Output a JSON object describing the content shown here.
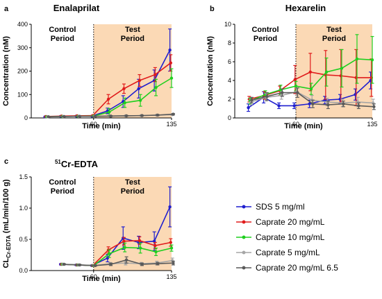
{
  "chart_data": [
    {
      "type": "line",
      "panel_letter": "a",
      "title": "Enalaprilat",
      "xlabel": "Time (min)",
      "ylabel": "Concentration (nM)",
      "xlim": [
        0,
        135
      ],
      "ylim": [
        0,
        400
      ],
      "xticks": [
        60,
        135
      ],
      "yticks": [
        0,
        100,
        200,
        300,
        400
      ],
      "control_label": [
        "Control",
        "Period"
      ],
      "test_label": [
        "Test",
        "Period"
      ],
      "shaded_region": [
        60,
        135
      ],
      "x": [
        15,
        30,
        45,
        60,
        75,
        90,
        105,
        120,
        135
      ],
      "series": [
        {
          "name": "SDS 5 mg/ml",
          "color": "#1f1fcf",
          "values": [
            5,
            7,
            8,
            8,
            30,
            70,
            125,
            160,
            290
          ],
          "err": [
            2,
            2,
            2,
            2,
            12,
            25,
            40,
            45,
            90
          ]
        },
        {
          "name": "Caprate 20 mg/mL",
          "color": "#e01b1b",
          "values": [
            6,
            8,
            9,
            10,
            80,
            125,
            160,
            185,
            235
          ],
          "err": [
            2,
            2,
            2,
            2,
            20,
            20,
            25,
            30,
            35
          ]
        },
        {
          "name": "Caprate 10 mg/mL",
          "color": "#1fcf1f",
          "values": [
            5,
            6,
            7,
            8,
            25,
            65,
            75,
            130,
            170
          ],
          "err": [
            2,
            2,
            2,
            2,
            15,
            20,
            25,
            35,
            40
          ]
        },
        {
          "name": "Caprate 5 mg/mL",
          "color": "#a6a6a6",
          "values": [
            5,
            6,
            7,
            7,
            8,
            9,
            10,
            12,
            14
          ],
          "err": [
            1,
            1,
            1,
            1,
            2,
            2,
            2,
            2,
            3
          ]
        },
        {
          "name": "Caprate 20 mg/mL 6.5",
          "color": "#5a5a5a",
          "values": [
            5,
            6,
            7,
            7,
            8,
            9,
            10,
            12,
            16
          ],
          "err": [
            1,
            1,
            1,
            1,
            2,
            2,
            2,
            3,
            3
          ]
        }
      ]
    },
    {
      "type": "line",
      "panel_letter": "b",
      "title": "Hexarelin",
      "xlabel": "Time (min)",
      "ylabel": "Concentration (nM)",
      "xlim": [
        0,
        135
      ],
      "ylim": [
        0,
        10
      ],
      "xticks": [
        60,
        135
      ],
      "yticks": [
        0,
        2,
        4,
        6,
        8,
        10
      ],
      "control_label": [
        "Control",
        "Period"
      ],
      "test_label": [
        "Test",
        "Period"
      ],
      "shaded_region": [
        60,
        135
      ],
      "x": [
        15,
        30,
        45,
        60,
        75,
        90,
        105,
        120,
        135
      ],
      "series": [
        {
          "name": "SDS 5 mg/ml",
          "color": "#1f1fcf",
          "values": [
            1.1,
            2.2,
            1.3,
            1.3,
            1.5,
            1.9,
            2.0,
            2.5,
            4.0
          ],
          "err": [
            0.4,
            0.6,
            0.3,
            0.3,
            0.4,
            0.4,
            0.5,
            0.6,
            0.9
          ]
        },
        {
          "name": "Caprate 20 mg/mL",
          "color": "#e01b1b",
          "values": [
            2.0,
            2.4,
            2.9,
            4.1,
            4.9,
            4.6,
            4.5,
            4.3,
            4.3
          ],
          "err": [
            0.3,
            0.4,
            0.5,
            1.5,
            2.0,
            2.6,
            2.8,
            3.0,
            2.0
          ]
        },
        {
          "name": "Caprate 10 mg/mL",
          "color": "#1fcf1f",
          "values": [
            1.8,
            2.5,
            3.0,
            3.4,
            3.1,
            4.9,
            5.3,
            6.3,
            6.2
          ],
          "err": [
            0.3,
            0.4,
            0.5,
            0.5,
            0.6,
            1.5,
            2.0,
            2.6,
            2.5
          ]
        },
        {
          "name": "Caprate 5 mg/mL",
          "color": "#a6a6a6",
          "values": [
            1.7,
            2.2,
            2.4,
            2.8,
            1.9,
            1.7,
            1.6,
            1.7,
            1.6
          ],
          "err": [
            0.3,
            0.4,
            0.4,
            0.4,
            0.5,
            0.4,
            0.4,
            0.5,
            0.4
          ]
        },
        {
          "name": "Caprate 20 mg/mL 6.5",
          "color": "#5a5a5a",
          "values": [
            1.9,
            2.3,
            2.7,
            2.7,
            1.5,
            1.4,
            1.5,
            1.3,
            1.2
          ],
          "err": [
            0.3,
            0.4,
            0.4,
            0.5,
            0.4,
            0.4,
            0.3,
            0.3,
            0.3
          ]
        }
      ]
    },
    {
      "type": "line",
      "panel_letter": "c",
      "title_sup": "51",
      "title": "Cr-EDTA",
      "xlabel": "Time (min)",
      "ylabel_main": "CL",
      "ylabel_sub": "Cr-EDTA",
      "ylabel_rest": " (mL/min/100 g)",
      "xlim": [
        0,
        135
      ],
      "ylim": [
        0,
        1.5
      ],
      "xticks": [
        60,
        135
      ],
      "yticks": [
        "0.0",
        "0.5",
        "1.0",
        "1.5"
      ],
      "control_label": [
        "Control",
        "Period"
      ],
      "test_label": [
        "Test",
        "Period"
      ],
      "shaded_region": [
        60,
        135
      ],
      "x": [
        30,
        45,
        60,
        75,
        90,
        105,
        120,
        135
      ],
      "series": [
        {
          "name": "SDS 5 mg/ml",
          "color": "#1f1fcf",
          "values": [
            0.1,
            0.09,
            0.08,
            0.2,
            0.52,
            0.45,
            0.47,
            1.02
          ],
          "err": [
            0.01,
            0.01,
            0.01,
            0.06,
            0.18,
            0.1,
            0.15,
            0.32
          ]
        },
        {
          "name": "Caprate 20 mg/mL",
          "color": "#e01b1b",
          "values": [
            0.1,
            0.09,
            0.08,
            0.33,
            0.47,
            0.48,
            0.4,
            0.45
          ],
          "err": [
            0.01,
            0.01,
            0.01,
            0.05,
            0.06,
            0.06,
            0.05,
            0.06
          ]
        },
        {
          "name": "Caprate 10 mg/mL",
          "color": "#1fcf1f",
          "values": [
            0.1,
            0.09,
            0.08,
            0.27,
            0.37,
            0.36,
            0.3,
            0.36
          ],
          "err": [
            0.01,
            0.01,
            0.01,
            0.06,
            0.07,
            0.08,
            0.06,
            0.05
          ]
        },
        {
          "name": "Caprate 5 mg/mL",
          "color": "#a6a6a6",
          "values": [
            0.1,
            0.09,
            0.08,
            0.11,
            0.12,
            0.11,
            0.12,
            0.16
          ],
          "err": [
            0.01,
            0.01,
            0.01,
            0.02,
            0.03,
            0.02,
            0.03,
            0.04
          ]
        },
        {
          "name": "Caprate 20 mg/mL 6.5",
          "color": "#5a5a5a",
          "values": [
            0.1,
            0.09,
            0.08,
            0.1,
            0.17,
            0.1,
            0.11,
            0.12
          ],
          "err": [
            0.01,
            0.01,
            0.01,
            0.02,
            0.05,
            0.02,
            0.02,
            0.03
          ]
        }
      ]
    }
  ],
  "legend": {
    "entries": [
      {
        "label": "SDS 5 mg/ml",
        "color": "#1f1fcf"
      },
      {
        "label": "Caprate 20 mg/mL",
        "color": "#e01b1b"
      },
      {
        "label": "Caprate 10 mg/mL",
        "color": "#1fcf1f"
      },
      {
        "label": "Caprate 5 mg/mL",
        "color": "#a6a6a6"
      },
      {
        "label": "Caprate 20 mg/mL 6.5",
        "color": "#5a5a5a"
      }
    ]
  },
  "colors": {
    "shade": "#fbd9b5"
  }
}
